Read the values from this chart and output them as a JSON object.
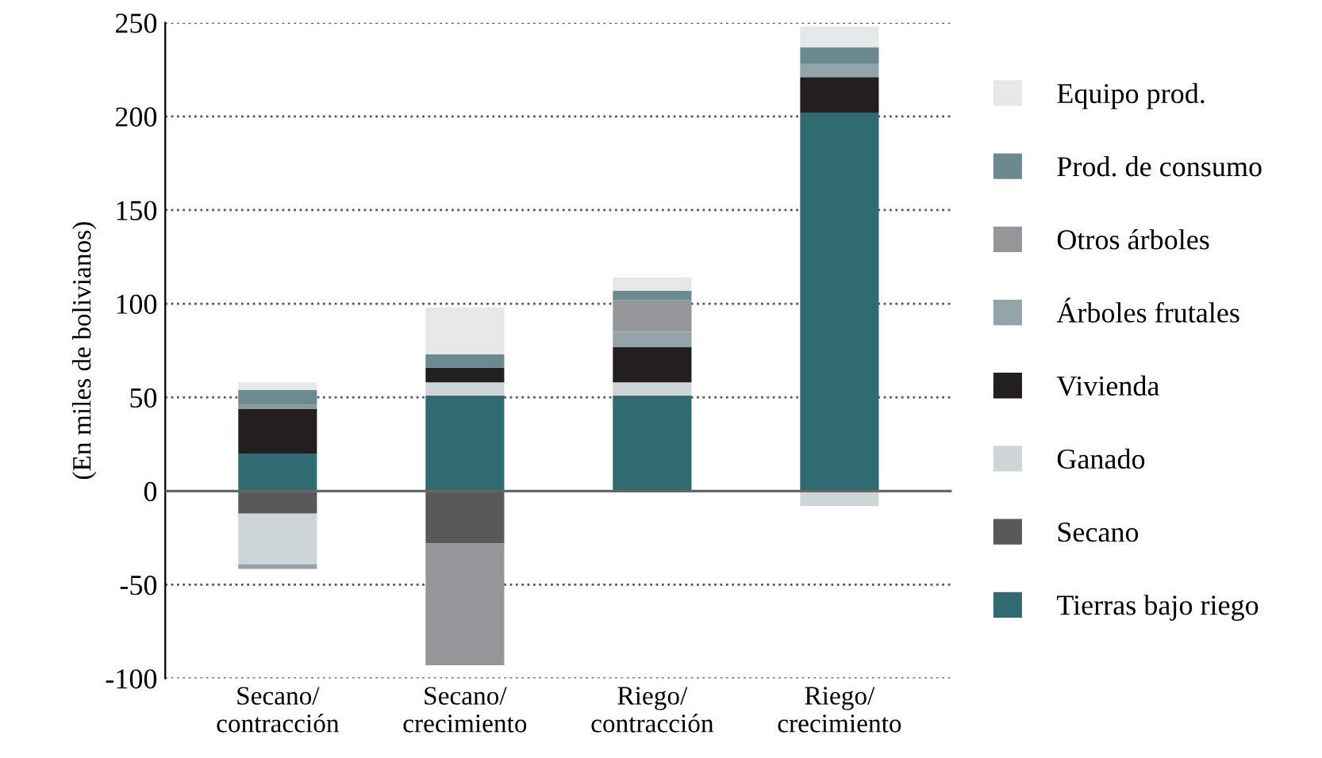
{
  "chart_data": {
    "type": "bar",
    "stacked": true,
    "categories": [
      "Secano/\ncontracción",
      "Secano/\ncrecimiento",
      "Riego/\ncontracción",
      "Riego/\ncrecimiento"
    ],
    "ylabel": "(En miles de bolivianos)",
    "series": [
      {
        "name": "Tierras bajo riego",
        "color": "#2f6b71",
        "values": [
          20,
          51,
          51,
          202
        ]
      },
      {
        "name": "Secano",
        "color": "#58595b",
        "values": [
          -12,
          -28,
          null,
          null
        ]
      },
      {
        "name": "Ganado",
        "color": "#cdd5d8",
        "values": [
          -27,
          7,
          7,
          -8
        ]
      },
      {
        "name": "Vivienda",
        "color": "#231f20",
        "values": [
          24,
          8,
          19,
          19
        ]
      },
      {
        "name": "Árboles frutales",
        "color": "#93a4a8",
        "values": [
          -2.5,
          null,
          8,
          7
        ]
      },
      {
        "name": "Otros árboles",
        "color": "#959699",
        "values": [
          2,
          -65,
          17,
          null
        ]
      },
      {
        "name": "Prod. de consumo",
        "color": "#6a8a90",
        "values": [
          8,
          7,
          5,
          9
        ]
      },
      {
        "name": "Equipo prod.",
        "color": "#e6e7e9",
        "values": [
          4,
          25,
          7,
          11
        ]
      }
    ],
    "ylim": [
      -100,
      250
    ],
    "yticks": [
      -100,
      -50,
      0,
      50,
      100,
      150,
      200,
      250
    ],
    "grid": "y",
    "legend": "right"
  }
}
